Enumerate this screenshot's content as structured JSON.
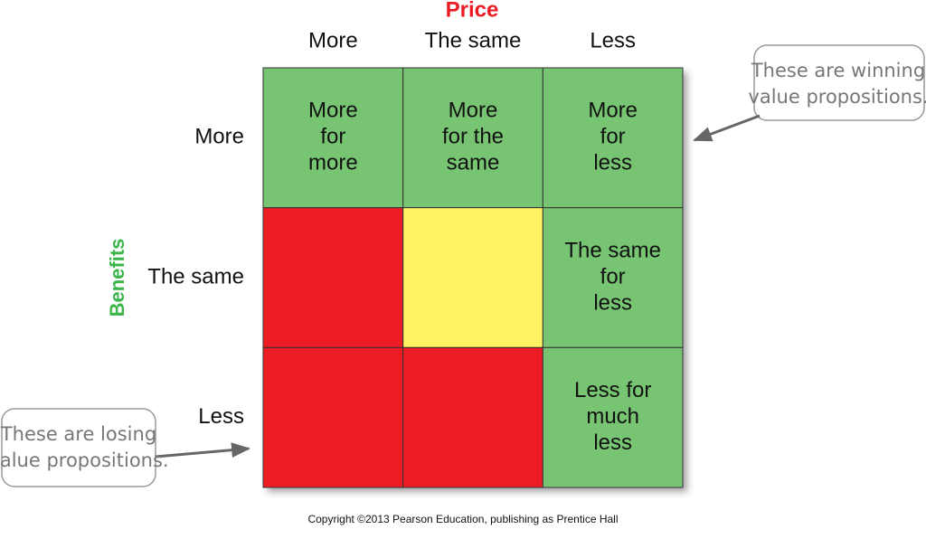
{
  "price_title": "Price",
  "benefits_title": "Benefits",
  "columns": [
    "More",
    "The same",
    "Less"
  ],
  "rows": [
    "More",
    "The same",
    "Less"
  ],
  "cells": [
    [
      {
        "color": "#77c472",
        "lines": [
          "More",
          "for",
          "more"
        ]
      },
      {
        "color": "#77c472",
        "lines": [
          "More",
          "for the",
          "same"
        ]
      },
      {
        "color": "#77c472",
        "lines": [
          "More",
          "for",
          "less"
        ]
      }
    ],
    [
      {
        "color": "#ed1c24"
      },
      {
        "color": "#fff263"
      },
      {
        "color": "#77c472",
        "lines": [
          "The same",
          "for",
          "less"
        ]
      }
    ],
    [
      {
        "color": "#ed1c24"
      },
      {
        "color": "#ed1c24"
      },
      {
        "color": "#77c472",
        "lines": [
          "Less for",
          "much",
          "less"
        ]
      }
    ]
  ],
  "callouts": {
    "winning": [
      "These are winning",
      "value propositions."
    ],
    "losing": [
      "These are losing",
      "value propositions."
    ]
  },
  "copyright": "Copyright ©2013 Pearson Education, publishing as Prentice Hall"
}
